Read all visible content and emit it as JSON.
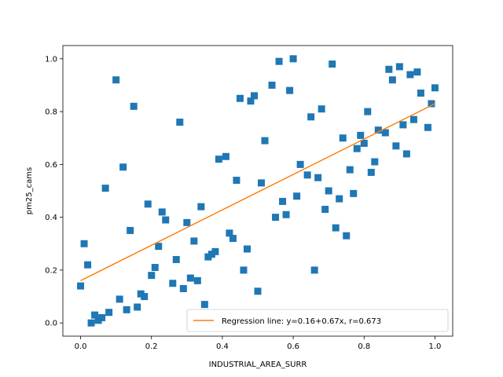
{
  "chart_data": {
    "type": "scatter",
    "xlabel": "INDUSTRIAL_AREA_SURR",
    "ylabel": "pm25_cams",
    "xlim": [
      -0.05,
      1.05
    ],
    "ylim": [
      -0.05,
      1.05
    ],
    "xticks": [
      "0.0",
      "0.2",
      "0.4",
      "0.6",
      "0.8",
      "1.0"
    ],
    "yticks": [
      "0.0",
      "0.2",
      "0.4",
      "0.6",
      "0.8",
      "1.0"
    ],
    "grid": false,
    "legend_position": "lower-right",
    "marker": "square",
    "colors": {
      "points": "#1f77b4",
      "regression": "#ff7f0e"
    },
    "points": [
      [
        0.0,
        0.14
      ],
      [
        0.01,
        0.3
      ],
      [
        0.02,
        0.22
      ],
      [
        0.03,
        0.0
      ],
      [
        0.04,
        0.03
      ],
      [
        0.05,
        0.01
      ],
      [
        0.06,
        0.02
      ],
      [
        0.07,
        0.51
      ],
      [
        0.08,
        0.04
      ],
      [
        0.1,
        0.92
      ],
      [
        0.11,
        0.09
      ],
      [
        0.12,
        0.59
      ],
      [
        0.13,
        0.05
      ],
      [
        0.14,
        0.35
      ],
      [
        0.15,
        0.82
      ],
      [
        0.16,
        0.06
      ],
      [
        0.17,
        0.11
      ],
      [
        0.18,
        0.1
      ],
      [
        0.19,
        0.45
      ],
      [
        0.2,
        0.18
      ],
      [
        0.21,
        0.21
      ],
      [
        0.22,
        0.29
      ],
      [
        0.23,
        0.42
      ],
      [
        0.24,
        0.39
      ],
      [
        0.26,
        0.15
      ],
      [
        0.27,
        0.24
      ],
      [
        0.28,
        0.76
      ],
      [
        0.29,
        0.13
      ],
      [
        0.3,
        0.38
      ],
      [
        0.31,
        0.17
      ],
      [
        0.32,
        0.31
      ],
      [
        0.33,
        0.16
      ],
      [
        0.34,
        0.44
      ],
      [
        0.35,
        0.07
      ],
      [
        0.36,
        0.25
      ],
      [
        0.37,
        0.26
      ],
      [
        0.38,
        0.27
      ],
      [
        0.39,
        0.62
      ],
      [
        0.41,
        0.63
      ],
      [
        0.42,
        0.34
      ],
      [
        0.43,
        0.32
      ],
      [
        0.44,
        0.54
      ],
      [
        0.45,
        0.85
      ],
      [
        0.46,
        0.2
      ],
      [
        0.47,
        0.28
      ],
      [
        0.48,
        0.84
      ],
      [
        0.49,
        0.86
      ],
      [
        0.5,
        0.12
      ],
      [
        0.51,
        0.53
      ],
      [
        0.52,
        0.69
      ],
      [
        0.54,
        0.9
      ],
      [
        0.55,
        0.4
      ],
      [
        0.56,
        0.99
      ],
      [
        0.57,
        0.46
      ],
      [
        0.58,
        0.41
      ],
      [
        0.59,
        0.88
      ],
      [
        0.6,
        1.0
      ],
      [
        0.61,
        0.48
      ],
      [
        0.62,
        0.6
      ],
      [
        0.64,
        0.56
      ],
      [
        0.65,
        0.78
      ],
      [
        0.66,
        0.2
      ],
      [
        0.67,
        0.55
      ],
      [
        0.68,
        0.81
      ],
      [
        0.69,
        0.43
      ],
      [
        0.7,
        0.5
      ],
      [
        0.71,
        0.98
      ],
      [
        0.72,
        0.36
      ],
      [
        0.73,
        0.47
      ],
      [
        0.74,
        0.7
      ],
      [
        0.75,
        0.33
      ],
      [
        0.76,
        0.58
      ],
      [
        0.77,
        0.49
      ],
      [
        0.78,
        0.66
      ],
      [
        0.79,
        0.71
      ],
      [
        0.8,
        0.68
      ],
      [
        0.81,
        0.8
      ],
      [
        0.82,
        0.57
      ],
      [
        0.83,
        0.61
      ],
      [
        0.84,
        0.73
      ],
      [
        0.86,
        0.72
      ],
      [
        0.87,
        0.96
      ],
      [
        0.88,
        0.92
      ],
      [
        0.89,
        0.67
      ],
      [
        0.9,
        0.97
      ],
      [
        0.91,
        0.75
      ],
      [
        0.92,
        0.64
      ],
      [
        0.93,
        0.94
      ],
      [
        0.94,
        0.77
      ],
      [
        0.95,
        0.95
      ],
      [
        0.96,
        0.87
      ],
      [
        0.98,
        0.74
      ],
      [
        0.99,
        0.83
      ],
      [
        1.0,
        0.89
      ]
    ],
    "regression": {
      "label": "Regression line: y=0.16+0.67x, r=0.673",
      "intercept": 0.16,
      "slope": 0.67,
      "x_range": [
        0.0,
        1.0
      ]
    }
  }
}
